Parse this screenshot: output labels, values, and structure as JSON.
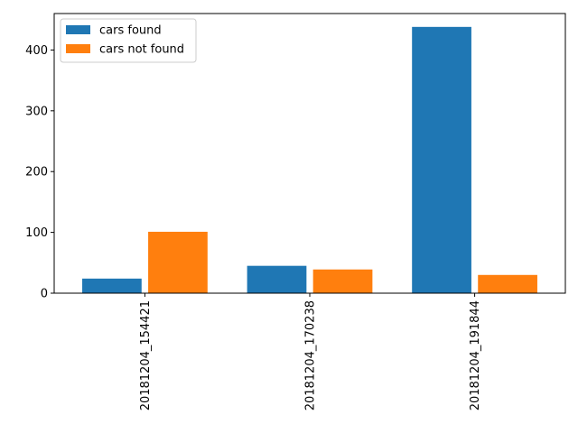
{
  "chart_data": {
    "type": "bar",
    "title": "",
    "xlabel": "",
    "ylabel": "",
    "categories": [
      "20181204_154421",
      "20181204_170238",
      "20181204_191844"
    ],
    "series": [
      {
        "name": "cars found",
        "color": "#1f77b4",
        "values": [
          24,
          45,
          438
        ]
      },
      {
        "name": "cars not found",
        "color": "#ff7f0e",
        "values": [
          101,
          39,
          30
        ]
      }
    ],
    "ylim": [
      0,
      460
    ],
    "yticks": [
      0,
      100,
      200,
      300,
      400
    ],
    "xtick_rotation": "vertical",
    "grid": false,
    "legend_position": "top-left"
  }
}
